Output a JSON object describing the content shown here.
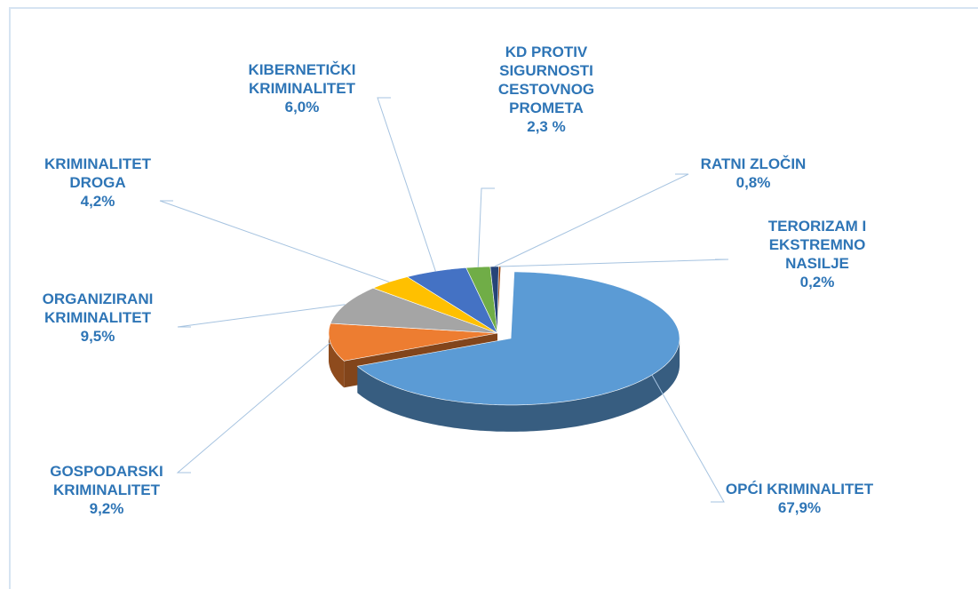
{
  "chart_data": {
    "type": "pie3d",
    "categories": [
      "OPĆI KRIMINALITET",
      "GOSPODARSKI\nKRIMINALITET",
      "ORGANIZIRANI\nKRIMINALITET",
      "KRIMINALITET\nDROGA",
      "KIBERNETIČKI\nKRIMINALITET",
      "KD PROTIV\nSIGURNOSTI\nCESTOVNOG\nPROMETA",
      "RATNI ZLOČIN",
      "TERORIZAM I\nEKSTREMNO NASILJE"
    ],
    "values": [
      67.9,
      9.2,
      9.5,
      4.2,
      6.0,
      2.3,
      0.8,
      0.2
    ],
    "value_labels": [
      "67,9%",
      "9,2%",
      "9,5%",
      "4,2%",
      "6,0%",
      "2,3 %",
      "0,8%",
      "0,2%"
    ],
    "colors": [
      "#5b9bd5",
      "#ed7d31",
      "#a5a5a5",
      "#ffc000",
      "#4472c4",
      "#70ad47",
      "#264478",
      "#9e480e"
    ]
  }
}
